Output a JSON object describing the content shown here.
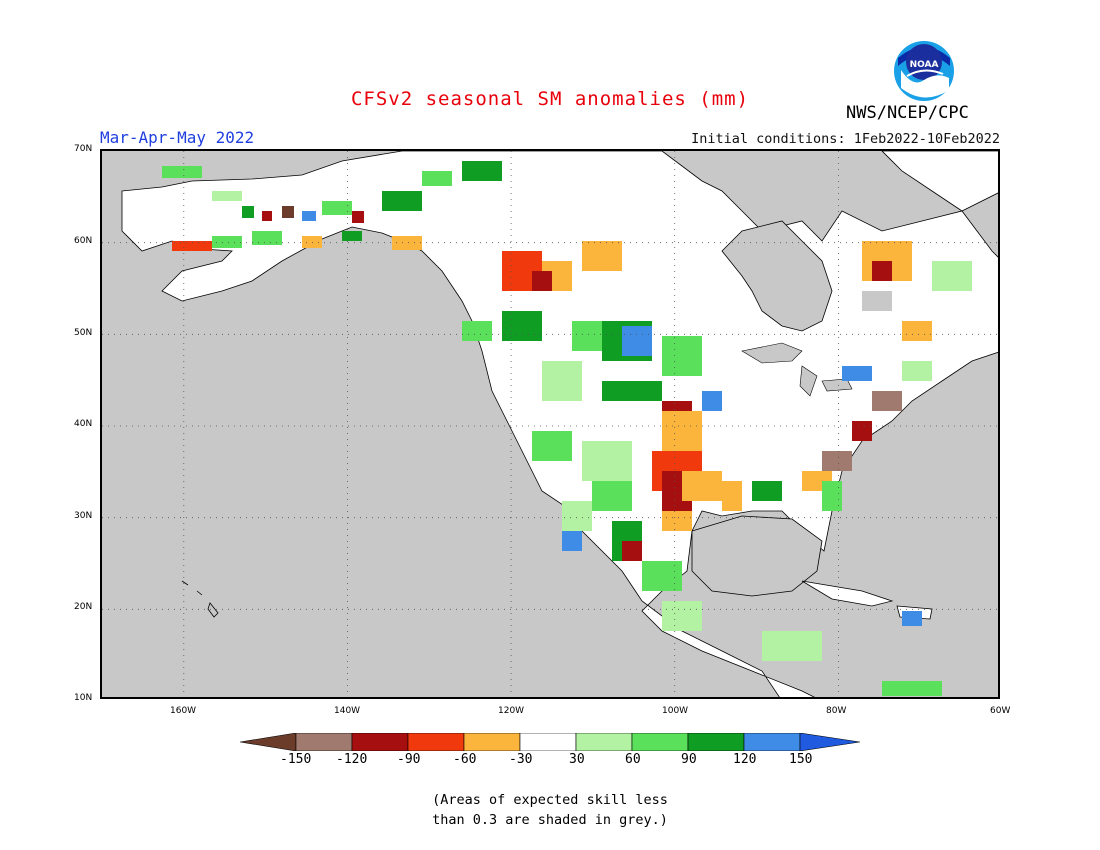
{
  "title": "CFSv2 seasonal SM anomalies (mm)",
  "period": "Mar-Apr-May 2022",
  "initial_conditions": "Initial conditions: 1Feb2022-10Feb2022",
  "agency": "NWS/NCEP/CPC",
  "logo_text": "NOAA",
  "logo_icon": "noaa-logo",
  "map": {
    "lat_labels": [
      "70N",
      "60N",
      "50N",
      "40N",
      "30N",
      "20N",
      "10N"
    ],
    "lon_labels": [
      "160W",
      "140W",
      "120W",
      "100W",
      "80W",
      "60W"
    ],
    "lat_range": [
      10,
      70
    ],
    "lon_range": [
      -170,
      -60
    ],
    "grid": "dotted"
  },
  "legend": {
    "ticks": [
      "-150",
      "-120",
      "-90",
      "-60",
      "-30",
      "30",
      "60",
      "90",
      "120",
      "150"
    ],
    "colors": [
      "#6b3c2a",
      "#a07a6e",
      "#a50f0f",
      "#f03a0e",
      "#fbb43c",
      "#ffffff",
      "#b2f2a2",
      "#5be05b",
      "#0f9e23",
      "#3f8ce6",
      "#1f5adf"
    ],
    "note_line1": "(Areas of expected skill less",
    "note_line2": "than 0.3 are shaded in grey.)"
  },
  "colors": {
    "title": "#e8000b",
    "period": "#1f3fe0",
    "ocean": "#c8c8c8",
    "land_default": "#ffffff"
  }
}
